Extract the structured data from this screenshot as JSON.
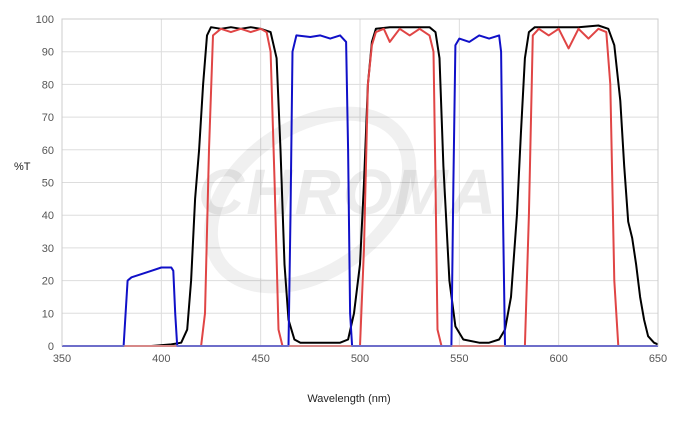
{
  "chart_data": {
    "type": "line",
    "xlabel": "Wavelength (nm)",
    "ylabel": "%T",
    "xlim": [
      350,
      650
    ],
    "ylim": [
      0,
      100
    ],
    "x_ticks": [
      350,
      400,
      450,
      500,
      550,
      600,
      650
    ],
    "y_ticks": [
      0,
      10,
      20,
      30,
      40,
      50,
      60,
      70,
      80,
      90,
      100
    ],
    "grid": true,
    "legend": "none",
    "watermark": "CHROMA",
    "series": [
      {
        "color": "#000000",
        "points": [
          [
            350,
            0
          ],
          [
            395,
            0
          ],
          [
            405,
            0.5
          ],
          [
            410,
            1
          ],
          [
            413,
            5
          ],
          [
            415,
            20
          ],
          [
            417,
            45
          ],
          [
            419,
            60
          ],
          [
            421,
            80
          ],
          [
            423,
            95
          ],
          [
            425,
            97.5
          ],
          [
            430,
            97
          ],
          [
            435,
            97.5
          ],
          [
            440,
            97
          ],
          [
            445,
            97.5
          ],
          [
            450,
            97
          ],
          [
            455,
            96
          ],
          [
            458,
            88
          ],
          [
            460,
            60
          ],
          [
            462,
            25
          ],
          [
            464,
            8
          ],
          [
            467,
            2
          ],
          [
            470,
            1
          ],
          [
            480,
            1
          ],
          [
            490,
            1
          ],
          [
            494,
            2
          ],
          [
            497,
            10
          ],
          [
            500,
            25
          ],
          [
            502,
            50
          ],
          [
            504,
            80
          ],
          [
            506,
            93
          ],
          [
            508,
            97
          ],
          [
            515,
            97.5
          ],
          [
            525,
            97.5
          ],
          [
            535,
            97.5
          ],
          [
            538,
            96
          ],
          [
            540,
            88
          ],
          [
            542,
            55
          ],
          [
            545,
            20
          ],
          [
            548,
            6
          ],
          [
            552,
            2
          ],
          [
            560,
            1
          ],
          [
            565,
            1
          ],
          [
            570,
            2
          ],
          [
            573,
            5
          ],
          [
            576,
            15
          ],
          [
            579,
            40
          ],
          [
            581,
            65
          ],
          [
            583,
            88
          ],
          [
            585,
            96
          ],
          [
            588,
            97.5
          ],
          [
            600,
            97.5
          ],
          [
            610,
            97.5
          ],
          [
            620,
            98
          ],
          [
            625,
            97
          ],
          [
            628,
            92
          ],
          [
            631,
            75
          ],
          [
            633,
            55
          ],
          [
            635,
            38
          ],
          [
            637,
            33
          ],
          [
            639,
            25
          ],
          [
            641,
            15
          ],
          [
            643,
            8
          ],
          [
            645,
            3
          ],
          [
            648,
            1
          ],
          [
            650,
            0.5
          ]
        ]
      },
      {
        "color": "#e04545",
        "points": [
          [
            350,
            0
          ],
          [
            420,
            0
          ],
          [
            422,
            10
          ],
          [
            424,
            60
          ],
          [
            426,
            95
          ],
          [
            430,
            97
          ],
          [
            435,
            96
          ],
          [
            440,
            97
          ],
          [
            445,
            96
          ],
          [
            450,
            97
          ],
          [
            453,
            96
          ],
          [
            455,
            90
          ],
          [
            457,
            50
          ],
          [
            459,
            5
          ],
          [
            461,
            0
          ],
          [
            500,
            0
          ],
          [
            502,
            30
          ],
          [
            504,
            80
          ],
          [
            506,
            92
          ],
          [
            508,
            96
          ],
          [
            512,
            97
          ],
          [
            515,
            93
          ],
          [
            520,
            97
          ],
          [
            525,
            95
          ],
          [
            530,
            97
          ],
          [
            535,
            95
          ],
          [
            537,
            90
          ],
          [
            538,
            50
          ],
          [
            539,
            5
          ],
          [
            541,
            0
          ],
          [
            583,
            0
          ],
          [
            585,
            40
          ],
          [
            587,
            95
          ],
          [
            590,
            97
          ],
          [
            595,
            95
          ],
          [
            600,
            97
          ],
          [
            605,
            91
          ],
          [
            610,
            97
          ],
          [
            615,
            94
          ],
          [
            620,
            97
          ],
          [
            624,
            96
          ],
          [
            626,
            80
          ],
          [
            628,
            20
          ],
          [
            630,
            0
          ],
          [
            650,
            0
          ]
        ]
      },
      {
        "color": "#1010c8",
        "points": [
          [
            350,
            0
          ],
          [
            381,
            0
          ],
          [
            382,
            10
          ],
          [
            383,
            20
          ],
          [
            385,
            21
          ],
          [
            390,
            22
          ],
          [
            395,
            23
          ],
          [
            400,
            24
          ],
          [
            405,
            24
          ],
          [
            406,
            23
          ],
          [
            407,
            10
          ],
          [
            408,
            0
          ],
          [
            464,
            0
          ],
          [
            465,
            40
          ],
          [
            466,
            90
          ],
          [
            468,
            95
          ],
          [
            475,
            94.5
          ],
          [
            480,
            95
          ],
          [
            485,
            94
          ],
          [
            490,
            95
          ],
          [
            493,
            93
          ],
          [
            494,
            60
          ],
          [
            495,
            10
          ],
          [
            496,
            0
          ],
          [
            546,
            0
          ],
          [
            547,
            50
          ],
          [
            548,
            92
          ],
          [
            550,
            94
          ],
          [
            555,
            93
          ],
          [
            560,
            95
          ],
          [
            565,
            94
          ],
          [
            570,
            95
          ],
          [
            571,
            90
          ],
          [
            572,
            40
          ],
          [
            573,
            0
          ],
          [
            650,
            0
          ]
        ]
      }
    ]
  }
}
